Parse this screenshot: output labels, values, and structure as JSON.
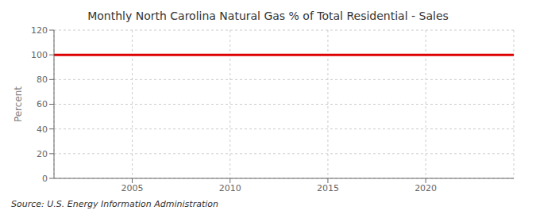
{
  "chart_data": {
    "type": "line",
    "title": "Monthly North Carolina Natural Gas % of Total Residential - Sales",
    "ylabel": "Percent",
    "source": "Source: U.S. Energy Information Administration",
    "x": [
      2001.0,
      2024.5
    ],
    "values": [
      100.0,
      100.0
    ],
    "color": "#dd0000",
    "xlim": [
      2001.0,
      2024.5
    ],
    "xticks": [
      2005,
      2010,
      2015,
      2020
    ],
    "ylim": [
      0,
      120
    ],
    "yticks": [
      0,
      20,
      40,
      60,
      80,
      100,
      120
    ],
    "grid": true
  }
}
